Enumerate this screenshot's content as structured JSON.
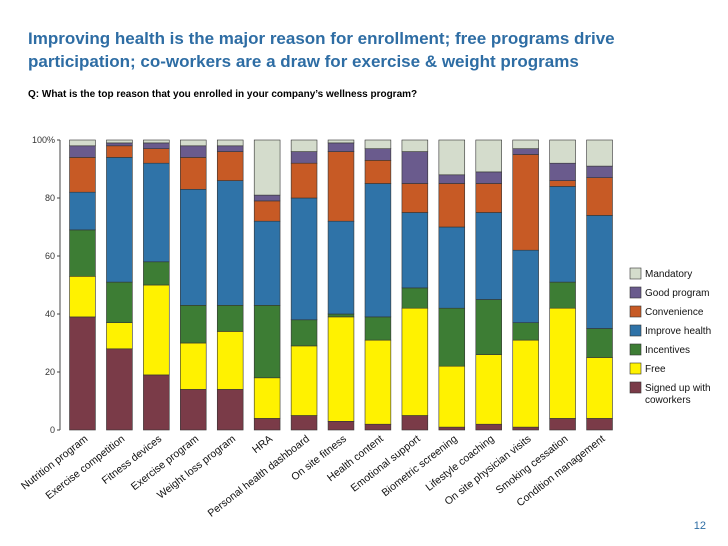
{
  "title": "Improving health is the major reason for enrollment; free programs drive participation; co-workers are a draw for exercise & weight programs",
  "question": "Q: What is the top reason that you enrolled in your company’s wellness program?",
  "page_number": "12",
  "chart_data": {
    "type": "bar",
    "stacked": true,
    "ylim": [
      0,
      100
    ],
    "yticks": [
      "0",
      "20",
      "40",
      "60",
      "80",
      "100%"
    ],
    "legend_position": "right",
    "categories": [
      "Nutrition program",
      "Exercise competition",
      "Fitness devices",
      "Exercise program",
      "Weight loss program",
      "HRA",
      "Personal health dashboard",
      "On site fitness",
      "Health content",
      "Emotional support",
      "Biometric screening",
      "Lifestyle coaching",
      "On site physician visits",
      "Smoking cessation",
      "Condition management"
    ],
    "series": [
      {
        "name": "Signed up with coworkers",
        "color": "#7a3b48",
        "values": [
          39,
          28,
          19,
          14,
          14,
          4,
          5,
          3,
          2,
          5,
          1,
          2,
          1,
          4,
          4
        ]
      },
      {
        "name": "Free",
        "color": "#fff200",
        "values": [
          14,
          9,
          31,
          16,
          20,
          14,
          24,
          36,
          29,
          37,
          21,
          24,
          30,
          38,
          21
        ]
      },
      {
        "name": "Incentives",
        "color": "#3d7d34",
        "values": [
          16,
          14,
          8,
          13,
          9,
          25,
          9,
          1,
          8,
          7,
          20,
          19,
          6,
          9,
          10
        ]
      },
      {
        "name": "Improve health",
        "color": "#2f73a8",
        "values": [
          13,
          43,
          34,
          40,
          43,
          29,
          42,
          32,
          46,
          26,
          28,
          30,
          25,
          33,
          39
        ]
      },
      {
        "name": "Convenience",
        "color": "#c75a25",
        "values": [
          12,
          4,
          5,
          11,
          10,
          7,
          12,
          24,
          8,
          10,
          15,
          10,
          33,
          2,
          13
        ]
      },
      {
        "name": "Good program",
        "color": "#6a5b8d",
        "values": [
          4,
          1,
          2,
          4,
          2,
          2,
          4,
          3,
          4,
          11,
          3,
          4,
          2,
          6,
          4
        ]
      },
      {
        "name": "Mandatory",
        "color": "#d4dccc",
        "values": [
          2,
          1,
          1,
          2,
          2,
          19,
          4,
          1,
          3,
          4,
          12,
          11,
          3,
          8,
          9
        ]
      }
    ],
    "legend_order": [
      "Mandatory",
      "Good program",
      "Convenience",
      "Improve health",
      "Incentives",
      "Free",
      "Signed up with coworkers"
    ]
  }
}
